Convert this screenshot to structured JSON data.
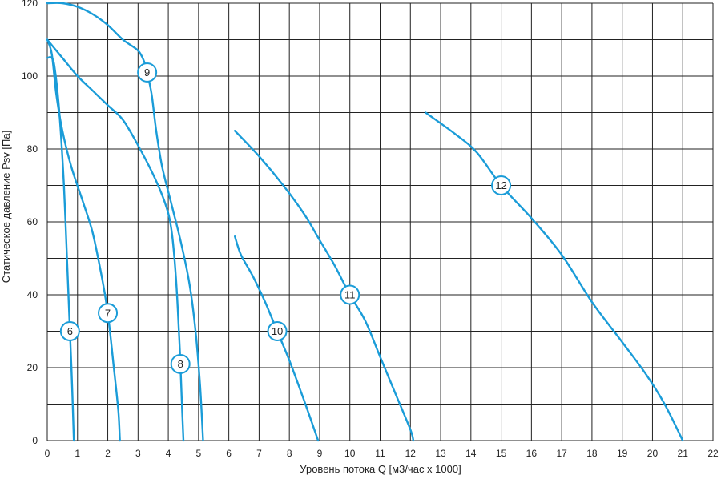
{
  "chart_data": {
    "type": "line",
    "title": "",
    "xlabel": "Уровень потока Q [м3/час x 1000]",
    "ylabel": "Статическое давление Psv [Па]",
    "xlim": [
      0,
      22
    ],
    "ylim": [
      0,
      120
    ],
    "grid": true,
    "x_ticks": [
      "0",
      "1",
      "2",
      "3",
      "4",
      "5",
      "6",
      "7",
      "8",
      "9",
      "10",
      "11",
      "12",
      "13",
      "14",
      "15",
      "16",
      "17",
      "18",
      "19",
      "20",
      "21",
      "22"
    ],
    "y_ticks": [
      "0",
      "20",
      "40",
      "60",
      "80",
      "100",
      "120"
    ],
    "colors": {
      "curve": "#1a9cd8",
      "grid": "#222222"
    },
    "series": [
      {
        "name": "6",
        "label_at": [
          0.75,
          30
        ],
        "points": [
          [
            0,
            105
          ],
          [
            0.15,
            105
          ],
          [
            0.25,
            102
          ],
          [
            0.4,
            90
          ],
          [
            0.55,
            70
          ],
          [
            0.65,
            50
          ],
          [
            0.75,
            30
          ],
          [
            0.82,
            15
          ],
          [
            0.88,
            0
          ]
        ]
      },
      {
        "name": "7",
        "label_at": [
          2.0,
          35
        ],
        "points": [
          [
            0,
            110
          ],
          [
            0.15,
            106
          ],
          [
            0.3,
            95
          ],
          [
            0.5,
            85
          ],
          [
            0.8,
            75
          ],
          [
            1.2,
            65
          ],
          [
            1.5,
            57
          ],
          [
            1.8,
            45
          ],
          [
            2.0,
            35
          ],
          [
            2.2,
            20
          ],
          [
            2.35,
            8
          ],
          [
            2.4,
            0
          ]
        ]
      },
      {
        "name": "8",
        "label_at": [
          4.4,
          21
        ],
        "points": [
          [
            0,
            110
          ],
          [
            0.5,
            105
          ],
          [
            1,
            100
          ],
          [
            1.5,
            96
          ],
          [
            2,
            92
          ],
          [
            2.5,
            88
          ],
          [
            3,
            81
          ],
          [
            3.5,
            73
          ],
          [
            3.9,
            65
          ],
          [
            4.1,
            58
          ],
          [
            4.25,
            45
          ],
          [
            4.35,
            30
          ],
          [
            4.4,
            21
          ],
          [
            4.45,
            10
          ],
          [
            4.5,
            0
          ]
        ]
      },
      {
        "name": "9",
        "label_at": [
          3.3,
          101
        ],
        "points": [
          [
            0,
            120
          ],
          [
            0.5,
            120
          ],
          [
            1,
            119
          ],
          [
            1.5,
            117
          ],
          [
            2,
            114
          ],
          [
            2.5,
            110
          ],
          [
            3.0,
            107
          ],
          [
            3.2,
            104
          ],
          [
            3.3,
            101
          ],
          [
            3.45,
            95
          ],
          [
            3.6,
            85
          ],
          [
            3.8,
            75
          ],
          [
            4.1,
            65
          ],
          [
            4.4,
            55
          ],
          [
            4.7,
            43
          ],
          [
            4.9,
            30
          ],
          [
            5.05,
            15
          ],
          [
            5.15,
            0
          ]
        ]
      },
      {
        "name": "10",
        "label_at": [
          7.6,
          30
        ],
        "points": [
          [
            6.2,
            56
          ],
          [
            6.4,
            51
          ],
          [
            6.8,
            45
          ],
          [
            7.2,
            38
          ],
          [
            7.6,
            30
          ],
          [
            8.0,
            22
          ],
          [
            8.4,
            13
          ],
          [
            8.7,
            6
          ],
          [
            8.95,
            0
          ]
        ]
      },
      {
        "name": "11",
        "label_at": [
          10.0,
          40
        ],
        "points": [
          [
            6.2,
            85
          ],
          [
            7,
            78
          ],
          [
            7.8,
            70
          ],
          [
            8.5,
            62
          ],
          [
            9.0,
            55
          ],
          [
            9.5,
            48
          ],
          [
            10.0,
            40
          ],
          [
            10.5,
            33
          ],
          [
            11,
            23
          ],
          [
            11.5,
            13
          ],
          [
            12.0,
            3
          ],
          [
            12.1,
            0
          ]
        ]
      },
      {
        "name": "12",
        "label_at": [
          15.0,
          70
        ],
        "points": [
          [
            12.5,
            90
          ],
          [
            13.5,
            84
          ],
          [
            14.2,
            79
          ],
          [
            15.0,
            70
          ],
          [
            16,
            61
          ],
          [
            17,
            51
          ],
          [
            18,
            38
          ],
          [
            19,
            27
          ],
          [
            19.8,
            18
          ],
          [
            20.4,
            10
          ],
          [
            21,
            0
          ]
        ]
      }
    ]
  }
}
